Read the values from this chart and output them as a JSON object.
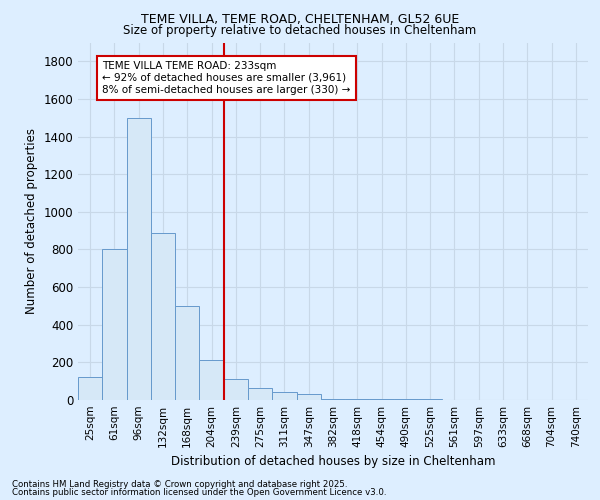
{
  "title1": "TEME VILLA, TEME ROAD, CHELTENHAM, GL52 6UE",
  "title2": "Size of property relative to detached houses in Cheltenham",
  "xlabel": "Distribution of detached houses by size in Cheltenham",
  "ylabel": "Number of detached properties",
  "bin_labels": [
    "25sqm",
    "61sqm",
    "96sqm",
    "132sqm",
    "168sqm",
    "204sqm",
    "239sqm",
    "275sqm",
    "311sqm",
    "347sqm",
    "382sqm",
    "418sqm",
    "454sqm",
    "490sqm",
    "525sqm",
    "561sqm",
    "597sqm",
    "633sqm",
    "668sqm",
    "704sqm",
    "740sqm"
  ],
  "bar_values": [
    120,
    800,
    1500,
    890,
    500,
    210,
    110,
    65,
    45,
    30,
    5,
    5,
    5,
    5,
    5,
    2,
    2,
    2,
    2,
    2,
    2
  ],
  "bar_color": "#d6e8f7",
  "bar_edge_color": "#6699cc",
  "vline_x_index": 6,
  "vline_color": "#cc0000",
  "annotation_text": "TEME VILLA TEME ROAD: 233sqm\n← 92% of detached houses are smaller (3,961)\n8% of semi-detached houses are larger (330) →",
  "annotation_box_color": "#ffffff",
  "annotation_box_edge": "#cc0000",
  "ylim": [
    0,
    1900
  ],
  "yticks": [
    0,
    200,
    400,
    600,
    800,
    1000,
    1200,
    1400,
    1600,
    1800
  ],
  "grid_color": "#c8d8e8",
  "bg_color": "#ddeeff",
  "footer1": "Contains HM Land Registry data © Crown copyright and database right 2025.",
  "footer2": "Contains public sector information licensed under the Open Government Licence v3.0."
}
